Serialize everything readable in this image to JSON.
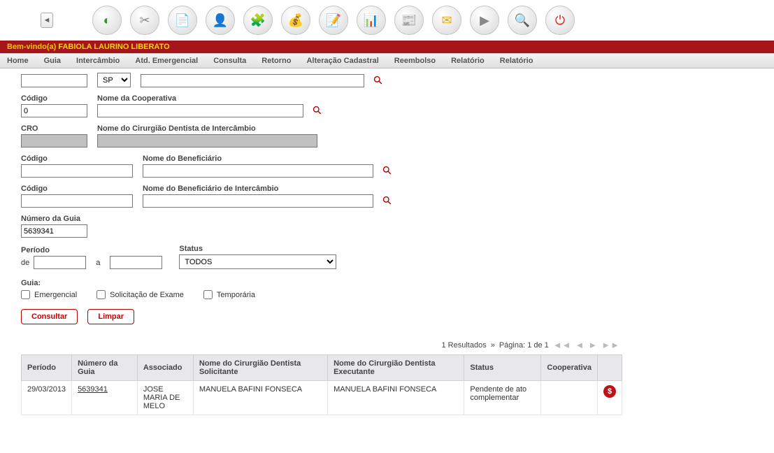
{
  "toolbar_icons": [
    "◐",
    "✂",
    "📄",
    "👤",
    "🧩",
    "💰",
    "📝",
    "📊",
    "📰",
    "✉",
    "▶",
    "🔍",
    "⏻"
  ],
  "toolbar_icon_colors": [
    "#3a8f2e",
    "#888",
    "#5a7fb0",
    "#3aa04a",
    "#b04040",
    "#c9a227",
    "#c47a3a",
    "#a01830",
    "#888",
    "#e6a817",
    "#888",
    "#3a6fb0",
    "#d02020"
  ],
  "welcome_prefix": "Bem-vindo(a) ",
  "welcome_user": "FABIOLA LAURINO LIBERATO",
  "menu": [
    "Home",
    "Guia",
    "Intercâmbio",
    "Atd. Emergencial",
    "Consulta",
    "Retorno",
    "Alteração Cadastral",
    "Reembolso",
    "Relatório",
    "Relatório"
  ],
  "form": {
    "blank_input_value": "",
    "uf_label": "",
    "uf_value": "SP",
    "nome_grande_value": "",
    "codigo_label": "Código",
    "codigo_value": "0",
    "nome_cooperativa_label": "Nome da Cooperativa",
    "nome_cooperativa_value": "",
    "cro_label": "CRO",
    "cro_value": "",
    "nome_cd_interc_label": "Nome do Cirurgião Dentista de Intercâmbio",
    "nome_cd_interc_value": "",
    "codigo2_label": "Código",
    "codigo2_value": "",
    "nome_benef_label": "Nome do Beneficiário",
    "nome_benef_value": "",
    "codigo3_label": "Código",
    "codigo3_value": "",
    "nome_benef_interc_label": "Nome do Beneficiário de Intercâmbio",
    "nome_benef_interc_value": "",
    "numero_guia_label": "Número da Guia",
    "numero_guia_value": "5639341",
    "periodo_label": "Período",
    "periodo_de": "de",
    "periodo_de_value": "",
    "periodo_a": "a",
    "periodo_a_value": "",
    "status_label": "Status",
    "status_value": "TODOS",
    "guia_label": "Guia:",
    "chk_emergencial": "Emergencial",
    "chk_solicitacao": "Solicitação de Exame",
    "chk_temporaria": "Temporária",
    "btn_consultar": "Consultar",
    "btn_limpar": "Limpar"
  },
  "results_bar": {
    "count_text": "1 Resultados",
    "separator": "»",
    "page_text": "Página: 1 de 1"
  },
  "table": {
    "headers": [
      "Período",
      "Número da Guia",
      "Associado",
      "Nome do Cirurgião Dentista Solicitante",
      "Nome do Cirurgião Dentista Executante",
      "Status",
      "Cooperativa",
      ""
    ],
    "row": {
      "periodo": "29/03/2013",
      "numero": "5639341",
      "associado": "JOSE MARIA DE MELO",
      "solicitante": "MANUELA BAFINI FONSECA",
      "executante": "MANUELA BAFINI FONSECA",
      "status": "Pendente de ato complementar",
      "cooperativa": "",
      "action_symbol": "$"
    }
  }
}
